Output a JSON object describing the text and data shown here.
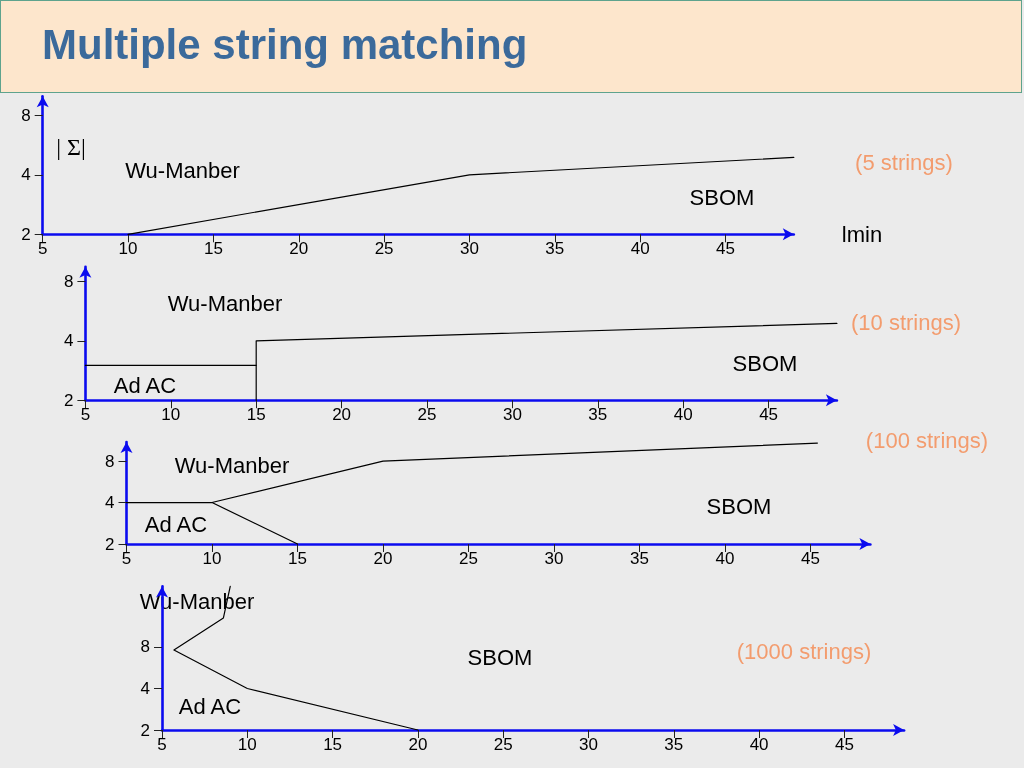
{
  "chart_data": [
    {
      "type": "line",
      "title": "Multiple string matching",
      "xlabel": "lmin",
      "ylabel": "| Σ|",
      "log": "y",
      "xlim": [
        5,
        49
      ],
      "ylim": [
        2,
        10
      ],
      "xticks": [
        5,
        10,
        15,
        20,
        25,
        30,
        35,
        40,
        45
      ],
      "yticks": [
        2,
        4,
        8
      ],
      "marker": "none",
      "series": [
        {
          "color": "#000000",
          "x": [
            10,
            30,
            49
          ],
          "values": [
            2,
            4,
            4.9
          ]
        }
      ],
      "annotations": [
        "(5 strings)",
        "Wu-Manber",
        "SBOM"
      ]
    },
    {
      "type": "line",
      "log": "y",
      "xlim": [
        5,
        49
      ],
      "ylim": [
        2,
        9.5
      ],
      "xticks": [
        5,
        10,
        15,
        20,
        25,
        30,
        35,
        40,
        45
      ],
      "yticks": [
        2,
        4,
        8
      ],
      "marker": "none",
      "series": [
        {
          "color": "#000000",
          "x": [
            5,
            15
          ],
          "values": [
            3,
            3
          ]
        },
        {
          "color": "#000000",
          "x": [
            15,
            15,
            49
          ],
          "values": [
            2,
            4,
            4.9
          ]
        }
      ],
      "annotations": [
        "(10 strings)",
        "Wu-Manber",
        "SBOM",
        "Ad AC"
      ]
    },
    {
      "type": "line",
      "log": "y",
      "xlim": [
        5,
        48.5
      ],
      "ylim": [
        2,
        11
      ],
      "xticks": [
        5,
        10,
        15,
        20,
        25,
        30,
        35,
        40,
        45
      ],
      "yticks": [
        2,
        4,
        8
      ],
      "marker": "none",
      "series": [
        {
          "color": "#000000",
          "x": [
            5,
            10,
            20,
            45.4
          ],
          "values": [
            4,
            4,
            8,
            10.8
          ]
        },
        {
          "color": "#000000",
          "x": [
            10,
            15
          ],
          "values": [
            4,
            2
          ]
        }
      ],
      "annotations": [
        "(100 strings)",
        "Wu-Manber",
        "SBOM",
        "Ad AC"
      ]
    },
    {
      "type": "line",
      "log": "y",
      "xlim": [
        5,
        48.5
      ],
      "ylim": [
        2,
        22
      ],
      "xticks": [
        5,
        10,
        15,
        20,
        25,
        30,
        35,
        40,
        45
      ],
      "yticks": [
        2,
        4,
        8
      ],
      "marker": "none",
      "series": [
        {
          "color": "#000000",
          "x": [
            9,
            8.6,
            5.7,
            10,
            20
          ],
          "values": [
            22,
            13,
            7.6,
            4,
            2
          ]
        }
      ],
      "annotations": [
        "(1000 strings)",
        "Wu-Manber",
        "SBOM",
        "Ad AC"
      ]
    }
  ]
}
